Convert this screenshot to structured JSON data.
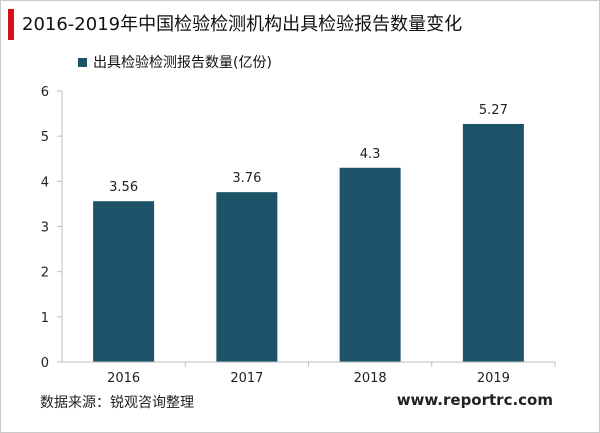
{
  "page": {
    "title": "2016-2019年中国检验检测机构出具检验报告数量变化",
    "source": "数据来源：锐观咨询整理",
    "website": "www.reportrc.com"
  },
  "colors": {
    "bar": "#1d5369",
    "accent": "#d4121a",
    "grid": "#d9d9d9"
  },
  "chart_data": {
    "type": "bar",
    "title": "2016-2019年中国检验检测机构出具检验报告数量变化",
    "categories": [
      "2016",
      "2017",
      "2018",
      "2019"
    ],
    "series": [
      {
        "name": "出具检验检测报告数量(亿份)",
        "values": [
          3.56,
          3.76,
          4.3,
          5.27
        ]
      }
    ],
    "data_labels": [
      "3.56",
      "3.76",
      "4.3",
      "5.27"
    ],
    "xlabel": "",
    "ylabel": "",
    "ylim": [
      0,
      6
    ],
    "yticks": [
      0,
      1,
      2,
      3,
      4,
      5,
      6
    ],
    "grid": false,
    "legend": "top-left"
  }
}
